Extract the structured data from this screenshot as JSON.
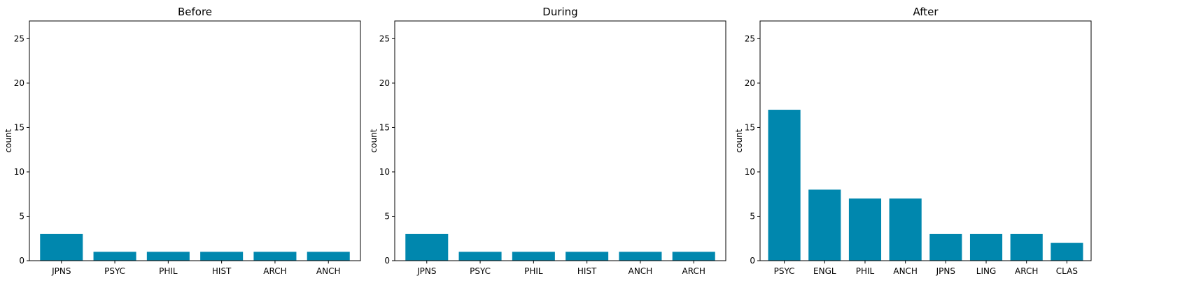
{
  "colors": {
    "bar": "#0087ae",
    "axis": "#000000"
  },
  "chart_data": [
    {
      "type": "bar",
      "title": "Before",
      "xlabel": "",
      "ylabel": "count",
      "ylim": [
        0,
        27
      ],
      "yticks": [
        0,
        5,
        10,
        15,
        20,
        25
      ],
      "categories": [
        "JPNS",
        "PSYC",
        "PHIL",
        "HIST",
        "ARCH",
        "ANCH"
      ],
      "values": [
        3,
        1,
        1,
        1,
        1,
        1
      ]
    },
    {
      "type": "bar",
      "title": "During",
      "xlabel": "",
      "ylabel": "count",
      "ylim": [
        0,
        27
      ],
      "yticks": [
        0,
        5,
        10,
        15,
        20,
        25
      ],
      "categories": [
        "JPNS",
        "PSYC",
        "PHIL",
        "HIST",
        "ANCH",
        "ARCH"
      ],
      "values": [
        3,
        1,
        1,
        1,
        1,
        1
      ]
    },
    {
      "type": "bar",
      "title": "After",
      "xlabel": "",
      "ylabel": "count",
      "ylim": [
        0,
        27
      ],
      "yticks": [
        0,
        5,
        10,
        15,
        20,
        25
      ],
      "categories": [
        "PSYC",
        "ENGL",
        "PHIL",
        "ANCH",
        "JPNS",
        "LING",
        "ARCH",
        "CLAS"
      ],
      "values": [
        17,
        8,
        7,
        7,
        3,
        3,
        3,
        2
      ]
    }
  ]
}
